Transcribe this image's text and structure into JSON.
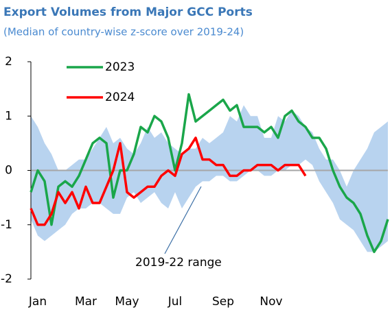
{
  "chart_data": {
    "type": "line",
    "title": "Export Volumes from Major GCC Ports",
    "subtitle": "(Median of country-wise z-score over 2019-24)",
    "categories": [
      null,
      "Jan",
      null,
      null,
      null,
      null,
      null,
      null,
      "Mar",
      null,
      null,
      null,
      null,
      null,
      "May",
      null,
      null,
      null,
      null,
      null,
      null,
      "Jul",
      null,
      null,
      null,
      null,
      null,
      null,
      "Sep",
      null,
      null,
      null,
      null,
      null,
      null,
      "Nov",
      null,
      null,
      null,
      null,
      null,
      null,
      null,
      null,
      null,
      null,
      null,
      null,
      null,
      null,
      null,
      null,
      null
    ],
    "series": [
      {
        "name": "2023",
        "color": "#1aa64a",
        "values": [
          -0.4,
          0,
          -0.2,
          -1,
          -0.3,
          -0.2,
          -0.3,
          -0.1,
          0.2,
          0.5,
          0.6,
          0.5,
          -0.5,
          0,
          0,
          0.3,
          0.8,
          0.7,
          1.0,
          0.9,
          0.6,
          0,
          0.5,
          1.4,
          0.9,
          1.0,
          1.1,
          1.2,
          1.3,
          1.1,
          1.2,
          0.8,
          0.8,
          0.8,
          0.7,
          0.8,
          0.6,
          1.0,
          1.1,
          0.9,
          0.8,
          0.6,
          0.6,
          0.4,
          0,
          -0.3,
          -0.5,
          -0.6,
          -0.8,
          -1.2,
          -1.5,
          -1.3,
          -0.9
        ]
      },
      {
        "name": "2024",
        "color": "#ff0000",
        "values": [
          -0.7,
          -1.0,
          -1.0,
          -0.8,
          -0.4,
          -0.6,
          -0.4,
          -0.7,
          -0.3,
          -0.6,
          -0.6,
          -0.3,
          0,
          0.5,
          -0.4,
          -0.5,
          -0.4,
          -0.3,
          -0.3,
          -0.1,
          0,
          -0.1,
          0.3,
          0.4,
          0.6,
          0.2,
          0.2,
          0.1,
          0.1,
          -0.1,
          -0.1,
          0,
          0,
          0.1,
          0.1,
          0.1,
          0,
          0.1,
          0.1,
          0.1,
          -0.1,
          null,
          null,
          null,
          null,
          null,
          null,
          null,
          null,
          null,
          null,
          null,
          null
        ]
      }
    ],
    "range": {
      "label": "2019-22 range",
      "color": "#b8d3ef",
      "upper": [
        1.0,
        0.8,
        0.5,
        0.3,
        0,
        0,
        0.1,
        0.2,
        0.2,
        0.4,
        0.6,
        0.8,
        0.5,
        0.6,
        0.4,
        0.3,
        0.5,
        0.8,
        0.6,
        0.7,
        0.5,
        0.4,
        0.3,
        0.4,
        0.4,
        0.6,
        0.5,
        0.6,
        0.7,
        1.0,
        0.9,
        1.2,
        1.0,
        1.0,
        0.6,
        0.6,
        1.0,
        0.9,
        1.1,
        1.0,
        0.8,
        0.7,
        0.4,
        0.2,
        0.2,
        0,
        -0.3,
        0,
        0.2,
        0.4,
        0.7,
        0.8,
        0.9
      ],
      "lower": [
        -0.9,
        -1.2,
        -1.3,
        -1.2,
        -1.1,
        -1.0,
        -0.8,
        -0.7,
        -0.7,
        -0.6,
        -0.6,
        -0.7,
        -0.8,
        -0.8,
        -0.5,
        -0.4,
        -0.6,
        -0.5,
        -0.4,
        -0.6,
        -0.7,
        -0.4,
        -0.7,
        -0.5,
        -0.3,
        -0.2,
        -0.2,
        -0.1,
        -0.1,
        -0.2,
        -0.2,
        -0.1,
        0,
        0,
        -0.1,
        -0.1,
        0,
        0,
        0.1,
        0.1,
        0.2,
        0.1,
        -0.2,
        -0.4,
        -0.6,
        -0.9,
        -1.0,
        -1.1,
        -1.3,
        -1.5,
        -1.5,
        -1.4,
        -1.3
      ]
    },
    "ylim": [
      -2,
      2
    ],
    "yticks": [
      -2,
      -1,
      0,
      1,
      2
    ]
  }
}
